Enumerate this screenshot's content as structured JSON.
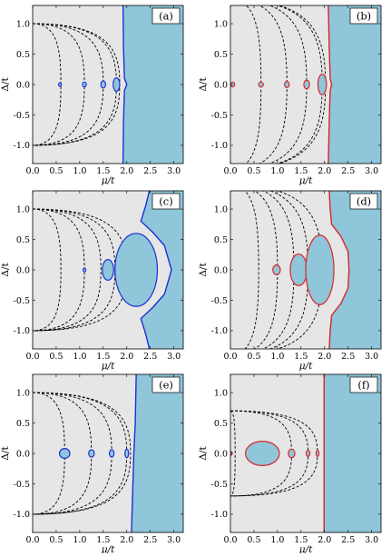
{
  "figure": {
    "axis_labels": {
      "x": "μ/t",
      "y": "Δ/t"
    },
    "colors": {
      "background": "#e6e6e6",
      "region": "#8fc6d9",
      "blue": "#1f2fd6",
      "red": "#d8262b",
      "dashed": "#000000"
    }
  },
  "chart_data": [
    {
      "type": "contour",
      "label": "(a)",
      "line_color": "blue",
      "xlim": [
        0,
        3.2
      ],
      "ylim": [
        -1.3,
        1.3
      ],
      "xticks": [
        "0.0",
        "0.5",
        "1.0",
        "1.5",
        "2.0",
        "2.5",
        "3.0"
      ],
      "yticks": [
        "1.0",
        "0.5",
        "0.0",
        "-0.5",
        "-1.0"
      ],
      "xlabel": "μ/t",
      "ylabel": "Δ/t",
      "boundary": [
        [
          1.92,
          1.3
        ],
        [
          1.93,
          0.6
        ],
        [
          1.95,
          0.1
        ],
        [
          2.0,
          0.0
        ],
        [
          1.95,
          -0.1
        ],
        [
          1.93,
          -0.6
        ],
        [
          1.92,
          -1.3
        ]
      ],
      "islands": [
        {
          "cx": 0.58,
          "cy": 0,
          "rx": 0.03,
          "ry": 0.03
        },
        {
          "cx": 1.1,
          "cy": 0,
          "rx": 0.04,
          "ry": 0.04
        },
        {
          "cx": 1.5,
          "cy": 0,
          "rx": 0.05,
          "ry": 0.06
        },
        {
          "cx": 1.78,
          "cy": 0,
          "rx": 0.07,
          "ry": 0.11
        }
      ],
      "dashed_tips": [
        0.6,
        1.1,
        1.5,
        1.78,
        1.85
      ],
      "dashed_center": 0,
      "dashed_ymax": 1.0
    },
    {
      "type": "contour",
      "label": "(b)",
      "line_color": "red",
      "xlim": [
        0,
        3.2
      ],
      "ylim": [
        -1.3,
        1.3
      ],
      "xticks": [
        "0.0",
        "0.5",
        "1.0",
        "1.5",
        "2.0",
        "2.5",
        "3.0"
      ],
      "yticks": [
        "1.0",
        "0.5",
        "0.0",
        "-0.5",
        "-1.0"
      ],
      "xlabel": "μ/t",
      "ylabel": "Δ/t",
      "boundary": [
        [
          2.08,
          1.3
        ],
        [
          2.1,
          0.6
        ],
        [
          2.12,
          0.1
        ],
        [
          2.15,
          0.0
        ],
        [
          2.12,
          -0.1
        ],
        [
          2.1,
          -0.6
        ],
        [
          2.08,
          -1.3
        ]
      ],
      "islands": [
        {
          "cx": 0.05,
          "cy": 0,
          "rx": 0.04,
          "ry": 0.04
        },
        {
          "cx": 0.65,
          "cy": 0,
          "rx": 0.05,
          "ry": 0.04
        },
        {
          "cx": 1.2,
          "cy": 0,
          "rx": 0.05,
          "ry": 0.05
        },
        {
          "cx": 1.62,
          "cy": 0,
          "rx": 0.06,
          "ry": 0.07
        },
        {
          "cx": 1.95,
          "cy": 0,
          "rx": 0.09,
          "ry": 0.17
        }
      ],
      "dashed_tips": [
        0.65,
        1.2,
        1.62,
        1.95,
        2.02
      ],
      "dashed_center": 0,
      "dashed_ymax": 1.4
    },
    {
      "type": "contour",
      "label": "(c)",
      "line_color": "blue",
      "xlim": [
        0,
        3.2
      ],
      "ylim": [
        -1.3,
        1.3
      ],
      "xticks": [
        "0.0",
        "0.5",
        "1.0",
        "1.5",
        "2.0",
        "2.5",
        "3.0"
      ],
      "yticks": [
        "1.0",
        "0.5",
        "0.0",
        "-0.5",
        "-1.0"
      ],
      "xlabel": "μ/t",
      "ylabel": "Δ/t",
      "boundary": [
        [
          2.48,
          1.3
        ],
        [
          2.4,
          1.05
        ],
        [
          2.3,
          0.8
        ],
        [
          2.55,
          0.62
        ],
        [
          2.8,
          0.4
        ],
        [
          2.95,
          0.0
        ],
        [
          2.8,
          -0.4
        ],
        [
          2.55,
          -0.62
        ],
        [
          2.3,
          -0.8
        ],
        [
          2.4,
          -1.05
        ],
        [
          2.48,
          -1.3
        ]
      ],
      "islands": [
        {
          "cx": 1.1,
          "cy": 0,
          "rx": 0.03,
          "ry": 0.03
        },
        {
          "cx": 1.6,
          "cy": 0,
          "rx": 0.12,
          "ry": 0.17
        },
        {
          "cx": 2.2,
          "cy": 0,
          "rx": 0.45,
          "ry": 0.6
        }
      ],
      "dashed_tips": [
        0.6,
        1.1,
        1.45,
        1.75,
        2.0
      ],
      "dashed_center": 0,
      "dashed_ymax": 1.0
    },
    {
      "type": "contour",
      "label": "(d)",
      "line_color": "red",
      "xlim": [
        0,
        3.2
      ],
      "ylim": [
        -1.3,
        1.3
      ],
      "xticks": [
        "0.0",
        "0.5",
        "1.0",
        "1.5",
        "2.0",
        "2.5",
        "3.0"
      ],
      "yticks": [
        "1.0",
        "0.5",
        "0.0",
        "-0.5",
        "-1.0"
      ],
      "xlabel": "μ/t",
      "ylabel": "Δ/t",
      "boundary": [
        [
          2.1,
          1.3
        ],
        [
          2.12,
          1.0
        ],
        [
          2.15,
          0.75
        ],
        [
          2.35,
          0.55
        ],
        [
          2.5,
          0.3
        ],
        [
          2.52,
          0.0
        ],
        [
          2.5,
          -0.3
        ],
        [
          2.35,
          -0.55
        ],
        [
          2.15,
          -0.75
        ],
        [
          2.12,
          -1.0
        ],
        [
          2.1,
          -1.3
        ]
      ],
      "islands": [
        {
          "cx": 0.98,
          "cy": 0,
          "rx": 0.08,
          "ry": 0.08
        },
        {
          "cx": 1.45,
          "cy": 0,
          "rx": 0.18,
          "ry": 0.26
        },
        {
          "cx": 1.9,
          "cy": 0,
          "rx": 0.3,
          "ry": 0.57
        }
      ],
      "dashed_tips": [
        0.6,
        1.0,
        1.35,
        1.65,
        1.95
      ],
      "dashed_center": 0,
      "dashed_ymax": 1.4
    },
    {
      "type": "contour",
      "label": "(e)",
      "line_color": "blue",
      "xlim": [
        0,
        3.2
      ],
      "ylim": [
        -1.3,
        1.3
      ],
      "xticks": [
        "0.0",
        "0.5",
        "1.0",
        "1.5",
        "2.0",
        "2.5",
        "3.0"
      ],
      "yticks": [
        "1.0",
        "0.5",
        "0.0",
        "-0.5",
        "-1.0"
      ],
      "xlabel": "μ/t",
      "ylabel": "Δ/t",
      "boundary": [
        [
          2.2,
          1.3
        ],
        [
          2.18,
          0.5
        ],
        [
          2.15,
          0.0
        ],
        [
          2.13,
          -0.5
        ],
        [
          2.1,
          -1.3
        ]
      ],
      "islands": [
        {
          "cx": 0.68,
          "cy": 0,
          "rx": 0.11,
          "ry": 0.08
        },
        {
          "cx": 1.25,
          "cy": 0,
          "rx": 0.06,
          "ry": 0.06
        },
        {
          "cx": 1.68,
          "cy": 0,
          "rx": 0.05,
          "ry": 0.06
        },
        {
          "cx": 2.0,
          "cy": 0,
          "rx": 0.04,
          "ry": 0.07
        }
      ],
      "dashed_tips": [
        0.68,
        1.25,
        1.68,
        2.0,
        2.08
      ],
      "dashed_center": 0,
      "dashed_ymax": 1.0
    },
    {
      "type": "contour",
      "label": "(f)",
      "line_color": "red",
      "xlim": [
        0,
        3.2
      ],
      "ylim": [
        -1.3,
        1.3
      ],
      "xticks": [
        "0.0",
        "0.5",
        "1.0",
        "1.5",
        "2.0",
        "2.5",
        "3.0"
      ],
      "yticks": [
        "1.0",
        "0.5",
        "0.0",
        "-0.5",
        "-1.0"
      ],
      "xlabel": "μ/t",
      "ylabel": "Δ/t",
      "boundary": [
        [
          1.99,
          1.3
        ],
        [
          1.99,
          0.0
        ],
        [
          1.99,
          -1.3
        ]
      ],
      "islands": [
        {
          "cx": 0.01,
          "cy": 0,
          "rx": 0.02,
          "ry": 0.03
        },
        {
          "cx": 0.68,
          "cy": 0,
          "rx": 0.36,
          "ry": 0.2
        },
        {
          "cx": 1.3,
          "cy": 0,
          "rx": 0.07,
          "ry": 0.07
        },
        {
          "cx": 1.65,
          "cy": 0,
          "rx": 0.04,
          "ry": 0.05
        },
        {
          "cx": 1.85,
          "cy": 0,
          "rx": 0.03,
          "ry": 0.05
        }
      ],
      "dashed_tips": [
        0.1,
        1.3,
        1.65,
        1.85
      ],
      "dashed_center": 0,
      "dashed_ymax": 0.7
    }
  ]
}
